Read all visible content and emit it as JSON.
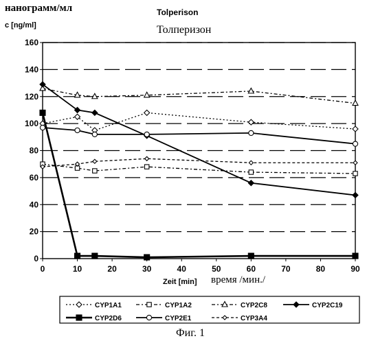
{
  "labels": {
    "ylabel_ru": "нанограмм/мл",
    "ylabel_en": "c [ng/ml]",
    "title_de": "Tolperison",
    "title_ru": "Толперизон",
    "xlabel_de": "Zeit [min]",
    "xlabel_ru": "время /мин./",
    "figure_caption": "Фиг. 1"
  },
  "chart_data": {
    "type": "line",
    "title": "Tolperison",
    "subtitle": "Толперизон",
    "xlabel": "Zeit [min]",
    "ylabel": "c [ng/ml]",
    "xlim": [
      0,
      90
    ],
    "ylim": [
      0,
      160
    ],
    "xticks": [
      0,
      10,
      20,
      30,
      40,
      50,
      60,
      70,
      80,
      90
    ],
    "yticks": [
      0,
      20,
      40,
      60,
      80,
      100,
      120,
      140,
      160
    ],
    "grid": "horizontal dashed",
    "legend_position": "bottom",
    "x": [
      0,
      10,
      15,
      30,
      60,
      90
    ],
    "series": [
      {
        "name": "CYP1A1",
        "values": [
          100,
          105,
          95,
          108,
          101,
          96
        ],
        "style": "dotted",
        "marker": "diamond-open"
      },
      {
        "name": "CYP1A2",
        "values": [
          70,
          67,
          65,
          68,
          64,
          63
        ],
        "style": "dashdot",
        "marker": "square-open"
      },
      {
        "name": "CYP2C8",
        "values": [
          126,
          121,
          120,
          121,
          124,
          115
        ],
        "style": "dashdot",
        "marker": "triangle-open"
      },
      {
        "name": "CYP2C19",
        "values": [
          129,
          110,
          108,
          91,
          56,
          47
        ],
        "style": "solid",
        "marker": "diamond-filled"
      },
      {
        "name": "CYP2D6",
        "values": [
          108,
          2,
          2,
          1,
          2,
          2
        ],
        "style": "solid-bold",
        "marker": "square-filled"
      },
      {
        "name": "CYP2E1",
        "values": [
          97,
          95,
          92,
          92,
          93,
          85
        ],
        "style": "solid",
        "marker": "circle-open"
      },
      {
        "name": "CYP3A4",
        "values": [
          68,
          70,
          72,
          74,
          71,
          71
        ],
        "style": "dashed",
        "marker": "diamond-small"
      }
    ]
  }
}
